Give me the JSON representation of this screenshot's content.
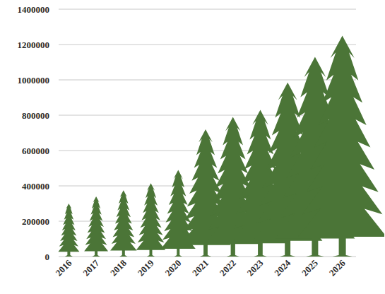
{
  "chart_data": {
    "type": "bar",
    "categories": [
      "2016",
      "2017",
      "2018",
      "2019",
      "2020",
      "2021",
      "2022",
      "2023",
      "2024",
      "2025",
      "2026"
    ],
    "values": [
      300000,
      340000,
      375000,
      415000,
      490000,
      720000,
      790000,
      830000,
      985000,
      1130000,
      1250000
    ],
    "color": "#4b7537",
    "ylim": [
      0,
      1400000
    ],
    "yticks": [
      0,
      200000,
      400000,
      600000,
      800000,
      1000000,
      1200000,
      1400000
    ],
    "grid": true
  }
}
